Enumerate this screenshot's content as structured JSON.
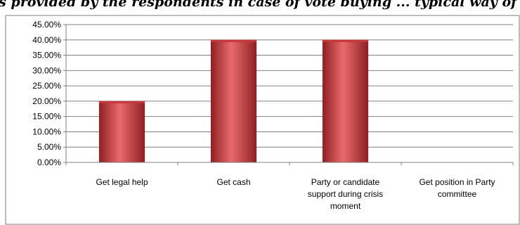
{
  "chart_data": {
    "type": "bar",
    "title": "...s provided by the respondents in case of vote buying ... typical way of ...",
    "categories": [
      "Get legal help",
      "Get cash",
      "Party or candidate support during crisis moment",
      "Get position in Party committee"
    ],
    "category_lines": [
      [
        "Get legal help"
      ],
      [
        "Get cash"
      ],
      [
        "Party or candidate",
        "support during crisis",
        "moment"
      ],
      [
        "Get position in Party",
        "committee"
      ]
    ],
    "series": [
      {
        "values": [
          20,
          40,
          40,
          0
        ]
      }
    ],
    "ylim": [
      0,
      45
    ],
    "ytick_step": 5,
    "ytick_format": "percent_2dp",
    "grid": true,
    "legend": "none",
    "bar_color": "#c8363a",
    "bar_highlight": "#ea6a6c",
    "bar_shadow": "#8f1f22"
  }
}
